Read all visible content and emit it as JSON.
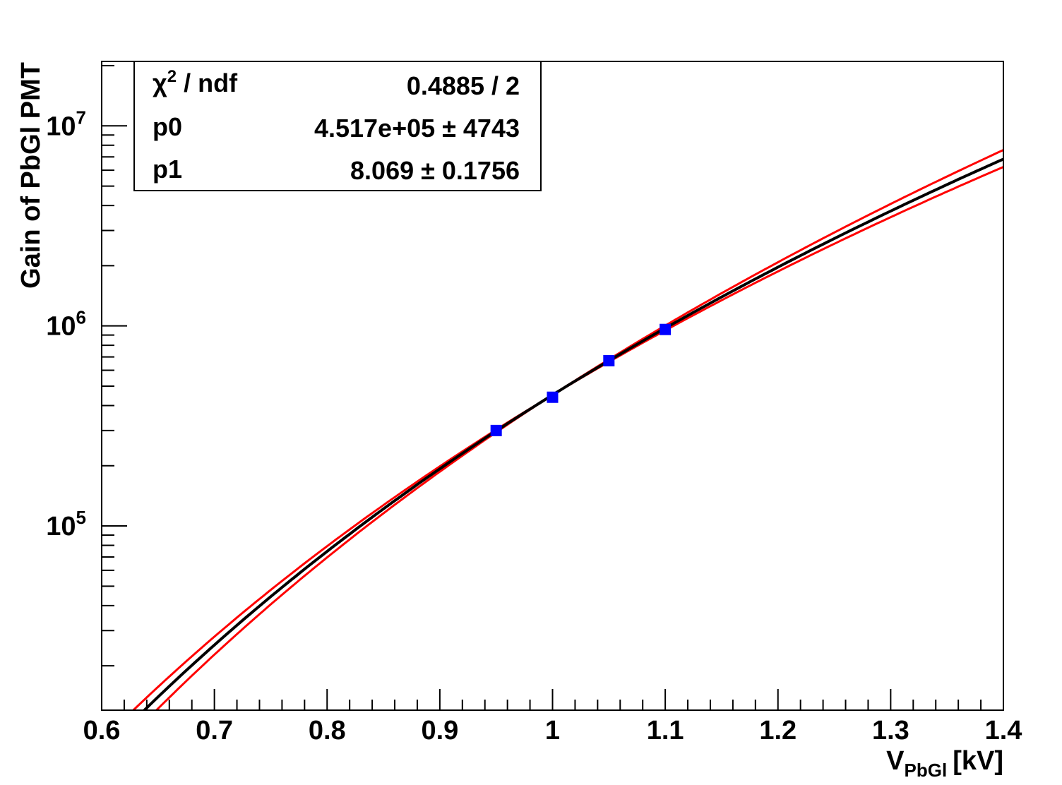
{
  "chart_data": {
    "type": "scatter",
    "xlabel_main": "V",
    "xlabel_sub": "PbGl",
    "xlabel_unit": "[kV]",
    "ylabel": "Gain of PbGl PMT",
    "xlim": [
      0.6,
      1.4
    ],
    "ylim": [
      12000,
      21000000
    ],
    "yscale": "log",
    "grid": false,
    "x_ticks": [
      "0.6",
      "0.7",
      "0.8",
      "0.9",
      "1",
      "1.1",
      "1.2",
      "1.3",
      "1.4"
    ],
    "y_ticks": [
      {
        "base": "10",
        "exp": "5",
        "value": 100000
      },
      {
        "base": "10",
        "exp": "6",
        "value": 1000000
      },
      {
        "base": "10",
        "exp": "7",
        "value": 10000000
      }
    ],
    "series": [
      {
        "kind": "points",
        "color": "#0000ff",
        "x": [
          0.95,
          1.0,
          1.05,
          1.1
        ],
        "y": [
          300000,
          440000,
          670000,
          960000
        ]
      }
    ],
    "fit": {
      "model": "p0 * V^p1",
      "line_color": "#000000",
      "band_color": "#ff0000",
      "band_low_p1": 7.8,
      "band_high_p1": 8.38
    },
    "stats_box": {
      "chi2_label_sym": "χ",
      "chi2_label_exp": "2",
      "chi2_label_rest": " / ndf",
      "chi2_value": "0.4885 / 2",
      "rows": [
        {
          "name": "p0",
          "value": "4.517e+05 ±  4743"
        },
        {
          "name": "p1",
          "value": "8.069 ± 0.1756"
        }
      ]
    }
  }
}
